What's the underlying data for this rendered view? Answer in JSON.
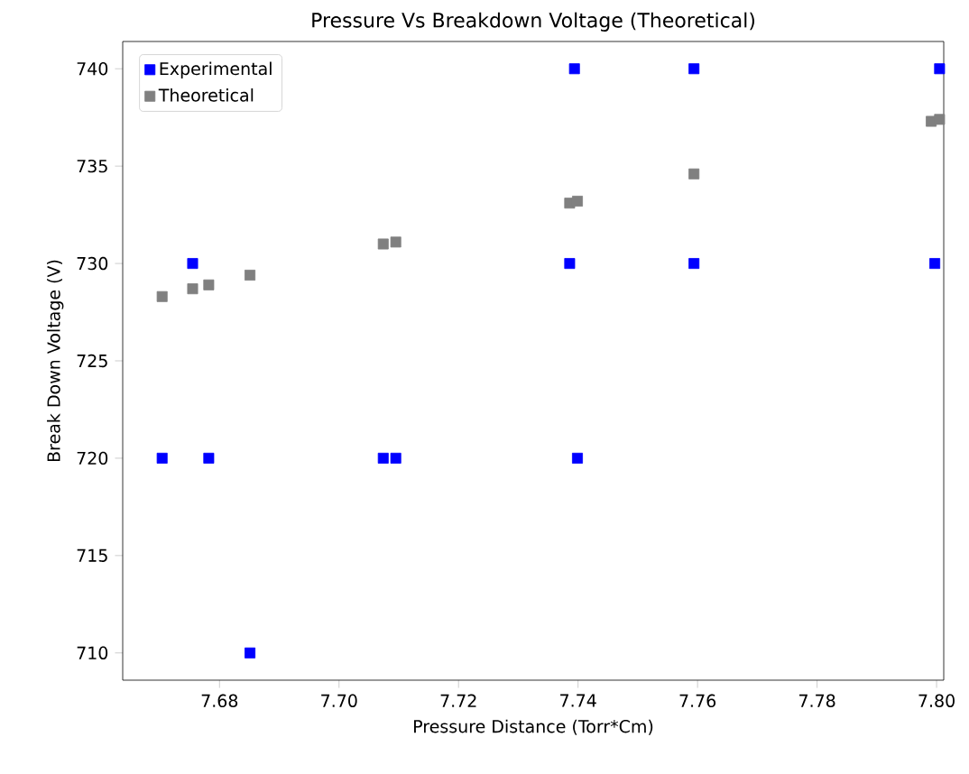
{
  "chart_data": {
    "type": "scatter",
    "title": "Pressure Vs Breakdown Voltage (Theoretical)",
    "xlabel": "Pressure Distance (Torr*Cm)",
    "ylabel": "Break Down Voltage (V)",
    "series": [
      {
        "name": "Experimental",
        "color": "#0000ff",
        "x": [
          7.6704,
          7.6755,
          7.6782,
          7.6851,
          7.7074,
          7.7095,
          7.7386,
          7.7394,
          7.7399,
          7.7594,
          7.7594,
          7.7997,
          7.8005
        ],
        "values": [
          720,
          730,
          720,
          710,
          720,
          720,
          730,
          740,
          720,
          730,
          740,
          730,
          740
        ]
      },
      {
        "name": "Theoretical",
        "color": "#808080",
        "x": [
          7.6704,
          7.6755,
          7.6782,
          7.6851,
          7.7074,
          7.7095,
          7.7386,
          7.7399,
          7.7594,
          7.7991,
          7.8005
        ],
        "values": [
          728.3,
          728.7,
          728.9,
          729.4,
          731.0,
          731.1,
          733.1,
          733.2,
          734.6,
          737.3,
          737.4
        ]
      }
    ],
    "marker": "square",
    "legend": "top left",
    "grid": false,
    "xlim": [
      7.6638,
      7.8012
    ],
    "ylim": [
      708.6,
      741.4
    ],
    "xticks": [
      {
        "value": 7.68,
        "label": "7.68"
      },
      {
        "value": 7.7,
        "label": "7.70"
      },
      {
        "value": 7.72,
        "label": "7.72"
      },
      {
        "value": 7.74,
        "label": "7.74"
      },
      {
        "value": 7.76,
        "label": "7.76"
      },
      {
        "value": 7.78,
        "label": "7.78"
      },
      {
        "value": 7.8,
        "label": "7.80"
      }
    ],
    "yticks": [
      710,
      715,
      720,
      725,
      730,
      735,
      740
    ]
  }
}
